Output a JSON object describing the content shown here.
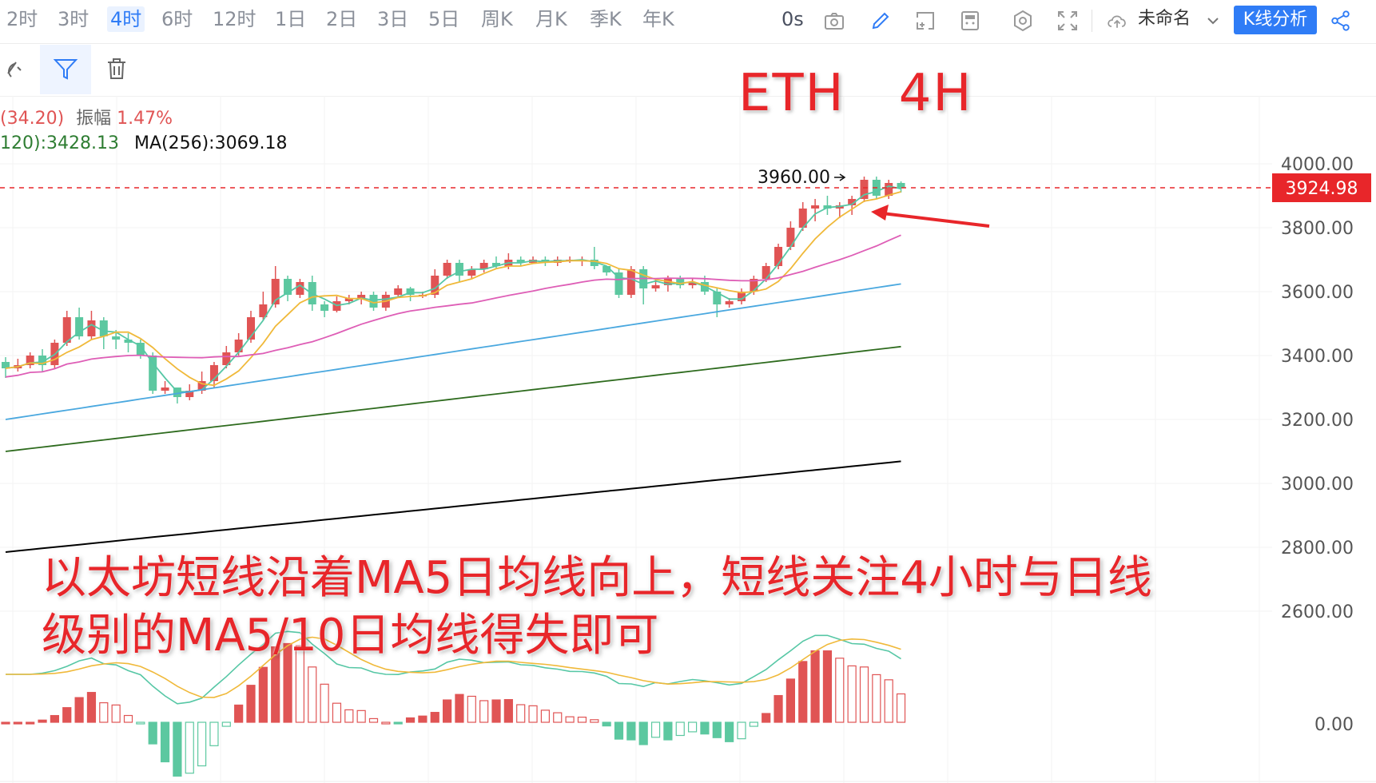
{
  "toolbar": {
    "timeframes": [
      "2时",
      "3时",
      "4时",
      "6时",
      "12时",
      "1日",
      "2日",
      "3日",
      "5日",
      "周K",
      "月K",
      "季K",
      "年K"
    ],
    "active_index": 2,
    "timer": "0s",
    "layout_name": "未命名",
    "analysis_button": "K线分析",
    "icons": [
      "camera-icon",
      "pencil-icon",
      "select-icon",
      "calculator-icon",
      "settings-icon",
      "fullscreen-icon",
      "cloud-icon",
      "chevron-down-icon",
      "share-icon"
    ]
  },
  "drawing_tools": [
    "magnet-icon",
    "filter-icon",
    "trash-icon"
  ],
  "info_line1": {
    "change": "(34.20)",
    "amplitude_label": "振幅",
    "amplitude": "1.47%"
  },
  "info_line2": [
    {
      "text": "120):3428.13",
      "color": "#2e7d32"
    },
    {
      "text": "MA(256):3069.18",
      "color": "#111111"
    }
  ],
  "symbol_title": "ETH   4H",
  "annotation": {
    "line1": "以太坊短线沿着MA5日均线向上，短线关注4小时与日线",
    "line2": "级别的MA5/10日均线得失即可"
  },
  "chart_data": {
    "type": "candlestick",
    "y_axis": {
      "ticks": [
        "4000.00",
        "3800.00",
        "3600.00",
        "3400.00",
        "3200.00",
        "3000.00",
        "2800.00",
        "2600.00"
      ],
      "range": [
        2440,
        4100
      ]
    },
    "macd_axis": {
      "ticks": [
        "0.00"
      ]
    },
    "current_price": "3924.98",
    "high_label": "3960.00",
    "colors": {
      "up": "#e05454",
      "down": "#5cc8a0",
      "ma5": "#56c7a5",
      "ma10": "#f0b93a",
      "ma30": "#de5eb6",
      "ma60": "#4aa8df",
      "ma120": "#2e6b1e",
      "ma256": "#000000",
      "price_line": "#e8262a"
    },
    "candles": [
      [
        3380,
        3360,
        3330,
        3395
      ],
      [
        3360,
        3370,
        3350,
        3390
      ],
      [
        3370,
        3400,
        3360,
        3410
      ],
      [
        3400,
        3370,
        3350,
        3420
      ],
      [
        3370,
        3440,
        3360,
        3450
      ],
      [
        3440,
        3520,
        3430,
        3540
      ],
      [
        3520,
        3460,
        3450,
        3550
      ],
      [
        3460,
        3510,
        3450,
        3540
      ],
      [
        3510,
        3460,
        3420,
        3520
      ],
      [
        3460,
        3450,
        3420,
        3480
      ],
      [
        3450,
        3440,
        3410,
        3470
      ],
      [
        3440,
        3400,
        3390,
        3450
      ],
      [
        3400,
        3290,
        3280,
        3410
      ],
      [
        3290,
        3300,
        3280,
        3320
      ],
      [
        3300,
        3270,
        3250,
        3300
      ],
      [
        3270,
        3290,
        3260,
        3310
      ],
      [
        3290,
        3320,
        3280,
        3350
      ],
      [
        3320,
        3370,
        3300,
        3380
      ],
      [
        3370,
        3410,
        3360,
        3430
      ],
      [
        3410,
        3450,
        3400,
        3470
      ],
      [
        3450,
        3520,
        3440,
        3540
      ],
      [
        3520,
        3560,
        3510,
        3600
      ],
      [
        3560,
        3640,
        3550,
        3680
      ],
      [
        3640,
        3590,
        3570,
        3650
      ],
      [
        3590,
        3630,
        3580,
        3640
      ],
      [
        3630,
        3560,
        3540,
        3650
      ],
      [
        3560,
        3540,
        3520,
        3570
      ],
      [
        3540,
        3570,
        3535,
        3585
      ],
      [
        3570,
        3580,
        3560,
        3590
      ],
      [
        3580,
        3590,
        3560,
        3600
      ],
      [
        3590,
        3550,
        3540,
        3600
      ],
      [
        3550,
        3590,
        3540,
        3600
      ],
      [
        3590,
        3610,
        3580,
        3620
      ],
      [
        3610,
        3590,
        3570,
        3615
      ],
      [
        3590,
        3590,
        3580,
        3600
      ],
      [
        3590,
        3650,
        3580,
        3670
      ],
      [
        3650,
        3690,
        3640,
        3700
      ],
      [
        3690,
        3650,
        3630,
        3700
      ],
      [
        3650,
        3670,
        3640,
        3680
      ],
      [
        3670,
        3690,
        3660,
        3700
      ],
      [
        3690,
        3680,
        3670,
        3710
      ],
      [
        3680,
        3700,
        3670,
        3720
      ],
      [
        3700,
        3690,
        3680,
        3710
      ],
      [
        3690,
        3700,
        3690,
        3710
      ],
      [
        3700,
        3690,
        3680,
        3710
      ],
      [
        3690,
        3700,
        3680,
        3710
      ],
      [
        3700,
        3700,
        3690,
        3710
      ],
      [
        3700,
        3700,
        3680,
        3710
      ],
      [
        3700,
        3680,
        3670,
        3740
      ],
      [
        3680,
        3660,
        3650,
        3680
      ],
      [
        3660,
        3590,
        3580,
        3670
      ],
      [
        3590,
        3670,
        3580,
        3680
      ],
      [
        3670,
        3610,
        3560,
        3680
      ],
      [
        3610,
        3620,
        3600,
        3640
      ],
      [
        3620,
        3640,
        3600,
        3650
      ],
      [
        3640,
        3620,
        3610,
        3650
      ],
      [
        3620,
        3630,
        3610,
        3640
      ],
      [
        3630,
        3600,
        3590,
        3650
      ],
      [
        3600,
        3560,
        3520,
        3610
      ],
      [
        3560,
        3570,
        3550,
        3580
      ],
      [
        3570,
        3600,
        3560,
        3610
      ],
      [
        3600,
        3640,
        3590,
        3650
      ],
      [
        3640,
        3680,
        3630,
        3690
      ],
      [
        3680,
        3740,
        3670,
        3750
      ],
      [
        3740,
        3800,
        3730,
        3820
      ],
      [
        3800,
        3860,
        3790,
        3880
      ],
      [
        3860,
        3870,
        3820,
        3890
      ],
      [
        3870,
        3860,
        3840,
        3900
      ],
      [
        3860,
        3870,
        3830,
        3880
      ],
      [
        3870,
        3890,
        3840,
        3900
      ],
      [
        3890,
        3950,
        3880,
        3960
      ],
      [
        3950,
        3900,
        3890,
        3960
      ],
      [
        3900,
        3940,
        3890,
        3950
      ],
      [
        3940,
        3925,
        3910,
        3945
      ]
    ]
  }
}
